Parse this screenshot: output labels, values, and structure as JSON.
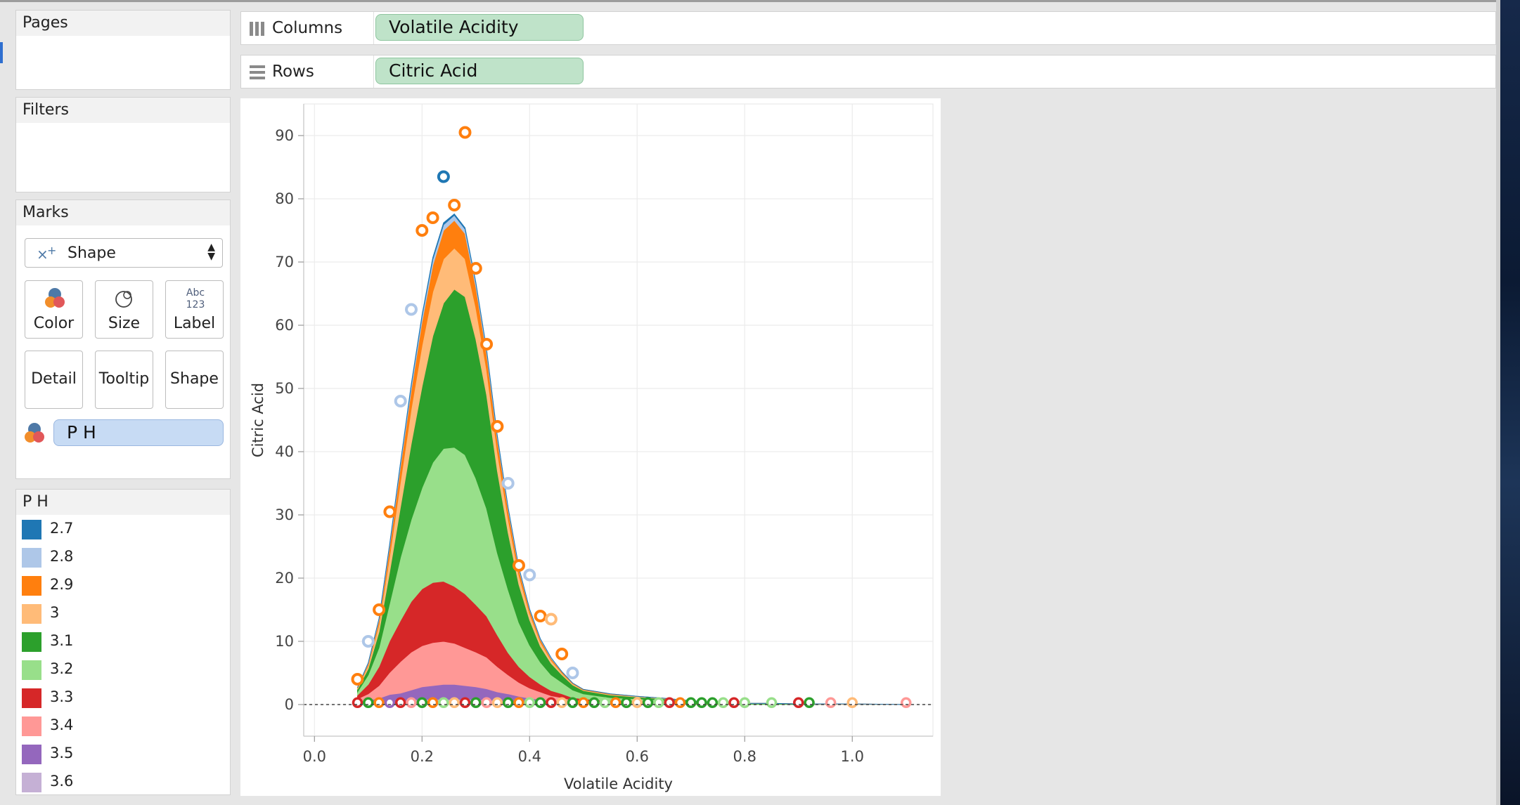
{
  "pages_panel": {
    "title": "Pages"
  },
  "filters_panel": {
    "title": "Filters"
  },
  "marks_panel": {
    "title": "Marks",
    "mark_type": "Shape",
    "buttons": {
      "color": "Color",
      "size": "Size",
      "label": "Label",
      "detail": "Detail",
      "tooltip": "Tooltip",
      "shape": "Shape"
    },
    "label_icon_text": {
      "line1": "Abc",
      "line2": "123"
    },
    "color_field": "P H"
  },
  "columns_shelf": {
    "label": "Columns",
    "pill": "Volatile Acidity"
  },
  "rows_shelf": {
    "label": "Rows",
    "pill": "Citric Acid"
  },
  "legend": {
    "title": "P H",
    "items": [
      {
        "label": "2.7",
        "color": "#1f77b4"
      },
      {
        "label": "2.8",
        "color": "#aec7e8"
      },
      {
        "label": "2.9",
        "color": "#ff7f0e"
      },
      {
        "label": "3",
        "color": "#ffbb78"
      },
      {
        "label": "3.1",
        "color": "#2ca02c"
      },
      {
        "label": "3.2",
        "color": "#98df8a"
      },
      {
        "label": "3.3",
        "color": "#d62728"
      },
      {
        "label": "3.4",
        "color": "#ff9896"
      },
      {
        "label": "3.5",
        "color": "#9467bd"
      },
      {
        "label": "3.6",
        "color": "#c5b0d5"
      }
    ]
  },
  "chart_data": {
    "type": "area",
    "xlabel": "Volatile Acidity",
    "ylabel": "Citric Acid",
    "xlim": [
      -0.02,
      1.15
    ],
    "ylim": [
      -5,
      95
    ],
    "x_ticks": [
      0.0,
      0.2,
      0.4,
      0.6,
      0.8,
      1.0
    ],
    "x_tick_labels": [
      "0.0",
      "0.2",
      "0.4",
      "0.6",
      "0.8",
      "1.0"
    ],
    "y_ticks": [
      0,
      10,
      20,
      30,
      40,
      50,
      60,
      70,
      80,
      90
    ],
    "grid": true,
    "zero_line": "dashed",
    "color_field": "P H",
    "x": [
      0.08,
      0.1,
      0.12,
      0.14,
      0.16,
      0.18,
      0.2,
      0.22,
      0.24,
      0.26,
      0.28,
      0.3,
      0.32,
      0.34,
      0.36,
      0.38,
      0.4,
      0.42,
      0.44,
      0.46,
      0.48,
      0.5,
      0.55,
      0.6,
      0.65,
      0.7,
      0.75,
      0.8,
      0.85,
      0.9,
      0.95,
      1.0,
      1.1
    ],
    "series": [
      {
        "name": "3.6",
        "values": [
          0.2,
          0.3,
          0.4,
          0.6,
          0.6,
          0.7,
          0.8,
          0.8,
          0.8,
          0.8,
          0.8,
          0.8,
          0.7,
          0.6,
          0.5,
          0.4,
          0.3,
          0.3,
          0.2,
          0.2,
          0.1,
          0.1,
          0.1,
          0.1,
          0.1,
          0.0,
          0.0,
          0.0,
          0.0,
          0.0,
          0.0,
          0.0,
          0.0
        ]
      },
      {
        "name": "3.5",
        "values": [
          0.2,
          0.4,
          0.6,
          1.0,
          1.2,
          1.6,
          2.0,
          2.2,
          2.4,
          2.4,
          2.2,
          2.0,
          1.8,
          1.4,
          1.2,
          0.9,
          0.7,
          0.5,
          0.4,
          0.3,
          0.2,
          0.2,
          0.1,
          0.1,
          0.1,
          0.0,
          0.0,
          0.0,
          0.0,
          0.0,
          0.0,
          0.0,
          0.0
        ]
      },
      {
        "name": "3.4",
        "values": [
          0.5,
          1.0,
          2.0,
          3.5,
          5.0,
          6.0,
          6.5,
          6.8,
          6.8,
          6.5,
          6.0,
          5.5,
          5.0,
          4.0,
          3.0,
          2.2,
          1.6,
          1.2,
          0.8,
          0.6,
          0.4,
          0.3,
          0.2,
          0.2,
          0.1,
          0.1,
          0.1,
          0.0,
          0.0,
          0.0,
          0.0,
          0.0,
          0.0
        ]
      },
      {
        "name": "3.3",
        "values": [
          0.6,
          1.5,
          3.0,
          5.0,
          6.5,
          8.0,
          9.0,
          9.5,
          9.5,
          9.0,
          8.5,
          7.5,
          6.5,
          5.0,
          3.5,
          2.5,
          1.8,
          1.2,
          0.8,
          0.6,
          0.4,
          0.3,
          0.2,
          0.2,
          0.1,
          0.1,
          0.0,
          0.0,
          0.0,
          0.0,
          0.0,
          0.0,
          0.0
        ]
      },
      {
        "name": "3.2",
        "values": [
          0.5,
          1.5,
          3.0,
          6.0,
          10.0,
          13.0,
          16.0,
          19.0,
          21.0,
          22.0,
          22.0,
          20.0,
          17.0,
          13.0,
          10.0,
          7.0,
          5.0,
          3.5,
          2.5,
          1.8,
          1.2,
          0.8,
          0.5,
          0.3,
          0.3,
          0.2,
          0.1,
          0.1,
          0.1,
          0.0,
          0.0,
          0.0,
          0.0
        ]
      },
      {
        "name": "3.1",
        "values": [
          0.4,
          1.0,
          2.5,
          5.0,
          8.0,
          12.0,
          16.0,
          20.0,
          23.0,
          25.0,
          25.0,
          22.0,
          18.0,
          13.0,
          9.0,
          6.0,
          4.0,
          2.5,
          1.8,
          1.2,
          0.8,
          0.5,
          0.4,
          0.3,
          0.2,
          0.2,
          0.1,
          0.1,
          0.1,
          0.1,
          0.0,
          0.0,
          0.0
        ]
      },
      {
        "name": "3",
        "values": [
          0.2,
          0.5,
          1.2,
          2.5,
          4.0,
          5.5,
          6.5,
          7.0,
          7.0,
          6.5,
          6.0,
          5.0,
          4.0,
          3.0,
          2.2,
          1.5,
          1.0,
          0.7,
          0.5,
          0.3,
          0.2,
          0.1,
          0.1,
          0.1,
          0.1,
          0.0,
          0.0,
          0.0,
          0.0,
          0.0,
          0.1,
          0.1,
          0.0
        ]
      },
      {
        "name": "2.9",
        "values": [
          0.1,
          0.3,
          0.7,
          1.5,
          2.4,
          3.0,
          3.8,
          4.2,
          4.5,
          4.4,
          4.0,
          3.3,
          2.6,
          2.0,
          1.5,
          1.0,
          0.6,
          0.4,
          0.3,
          0.2,
          0.1,
          0.1,
          0.1,
          0.0,
          0.0,
          0.0,
          0.0,
          0.0,
          0.0,
          0.0,
          0.0,
          0.0,
          0.0
        ]
      },
      {
        "name": "2.8",
        "values": [
          0.0,
          0.1,
          0.2,
          0.3,
          0.5,
          0.7,
          0.8,
          0.9,
          0.9,
          0.8,
          0.7,
          0.6,
          0.5,
          0.4,
          0.3,
          0.2,
          0.1,
          0.1,
          0.1,
          0.0,
          0.0,
          0.0,
          0.0,
          0.0,
          0.0,
          0.0,
          0.0,
          0.0,
          0.0,
          0.0,
          0.0,
          0.0,
          0.0
        ]
      },
      {
        "name": "2.7",
        "values": [
          0.0,
          0.0,
          0.0,
          0.1,
          0.1,
          0.2,
          0.2,
          0.3,
          0.3,
          0.2,
          0.2,
          0.1,
          0.1,
          0.1,
          0.0,
          0.0,
          0.0,
          0.0,
          0.0,
          0.0,
          0.0,
          0.0,
          0.0,
          0.0,
          0.0,
          0.0,
          0.0,
          0.0,
          0.0,
          0.0,
          0.0,
          0.0,
          0.0
        ]
      }
    ],
    "peaks": [
      {
        "x": 0.2,
        "y": 75,
        "color": "#ff7f0e"
      },
      {
        "x": 0.22,
        "y": 77,
        "color": "#ff7f0e"
      },
      {
        "x": 0.24,
        "y": 83.5,
        "color": "#1f77b4"
      },
      {
        "x": 0.26,
        "y": 79,
        "color": "#ff7f0e"
      },
      {
        "x": 0.28,
        "y": 90.5,
        "color": "#ff7f0e"
      },
      {
        "x": 0.3,
        "y": 69,
        "color": "#ff7f0e"
      },
      {
        "x": 0.32,
        "y": 57,
        "color": "#ff7f0e"
      },
      {
        "x": 0.34,
        "y": 44,
        "color": "#ff7f0e"
      },
      {
        "x": 0.16,
        "y": 48,
        "color": "#aec7e8"
      },
      {
        "x": 0.18,
        "y": 62.5,
        "color": "#aec7e8"
      },
      {
        "x": 0.36,
        "y": 35,
        "color": "#aec7e8"
      },
      {
        "x": 0.38,
        "y": 22,
        "color": "#ff7f0e"
      },
      {
        "x": 0.4,
        "y": 20.5,
        "color": "#aec7e8"
      },
      {
        "x": 0.42,
        "y": 14,
        "color": "#ff7f0e"
      },
      {
        "x": 0.44,
        "y": 13.5,
        "color": "#ffbb78"
      },
      {
        "x": 0.46,
        "y": 8,
        "color": "#ff7f0e"
      },
      {
        "x": 0.48,
        "y": 5,
        "color": "#aec7e8"
      },
      {
        "x": 0.14,
        "y": 30.5,
        "color": "#ff7f0e"
      },
      {
        "x": 0.12,
        "y": 15,
        "color": "#ff7f0e"
      },
      {
        "x": 0.1,
        "y": 10,
        "color": "#aec7e8"
      },
      {
        "x": 0.08,
        "y": 4,
        "color": "#ff7f0e"
      }
    ],
    "baseline_points": [
      {
        "x": 0.08,
        "color": "#d62728"
      },
      {
        "x": 0.1,
        "color": "#2ca02c"
      },
      {
        "x": 0.12,
        "color": "#ff7f0e"
      },
      {
        "x": 0.14,
        "color": "#9467bd"
      },
      {
        "x": 0.16,
        "color": "#d62728"
      },
      {
        "x": 0.18,
        "color": "#ff9896"
      },
      {
        "x": 0.2,
        "color": "#2ca02c"
      },
      {
        "x": 0.22,
        "color": "#ff7f0e"
      },
      {
        "x": 0.24,
        "color": "#98df8a"
      },
      {
        "x": 0.26,
        "color": "#ffbb78"
      },
      {
        "x": 0.28,
        "color": "#d62728"
      },
      {
        "x": 0.3,
        "color": "#2ca02c"
      },
      {
        "x": 0.32,
        "color": "#ff9896"
      },
      {
        "x": 0.34,
        "color": "#ffbb78"
      },
      {
        "x": 0.36,
        "color": "#2ca02c"
      },
      {
        "x": 0.38,
        "color": "#ff7f0e"
      },
      {
        "x": 0.4,
        "color": "#98df8a"
      },
      {
        "x": 0.42,
        "color": "#2ca02c"
      },
      {
        "x": 0.44,
        "color": "#d62728"
      },
      {
        "x": 0.46,
        "color": "#ffbb78"
      },
      {
        "x": 0.48,
        "color": "#2ca02c"
      },
      {
        "x": 0.5,
        "color": "#ff7f0e"
      },
      {
        "x": 0.52,
        "color": "#2ca02c"
      },
      {
        "x": 0.54,
        "color": "#98df8a"
      },
      {
        "x": 0.56,
        "color": "#ff7f0e"
      },
      {
        "x": 0.58,
        "color": "#2ca02c"
      },
      {
        "x": 0.6,
        "color": "#ffbb78"
      },
      {
        "x": 0.62,
        "color": "#2ca02c"
      },
      {
        "x": 0.64,
        "color": "#98df8a"
      },
      {
        "x": 0.66,
        "color": "#d62728"
      },
      {
        "x": 0.68,
        "color": "#ff7f0e"
      },
      {
        "x": 0.7,
        "color": "#2ca02c"
      },
      {
        "x": 0.72,
        "color": "#2ca02c"
      },
      {
        "x": 0.74,
        "color": "#2ca02c"
      },
      {
        "x": 0.76,
        "color": "#98df8a"
      },
      {
        "x": 0.78,
        "color": "#d62728"
      },
      {
        "x": 0.8,
        "color": "#98df8a"
      },
      {
        "x": 0.85,
        "color": "#98df8a"
      },
      {
        "x": 0.9,
        "color": "#d62728"
      },
      {
        "x": 0.92,
        "color": "#2ca02c"
      },
      {
        "x": 0.96,
        "color": "#ff9896"
      },
      {
        "x": 1.0,
        "color": "#ffbb78"
      },
      {
        "x": 1.1,
        "color": "#ff9896"
      }
    ]
  }
}
